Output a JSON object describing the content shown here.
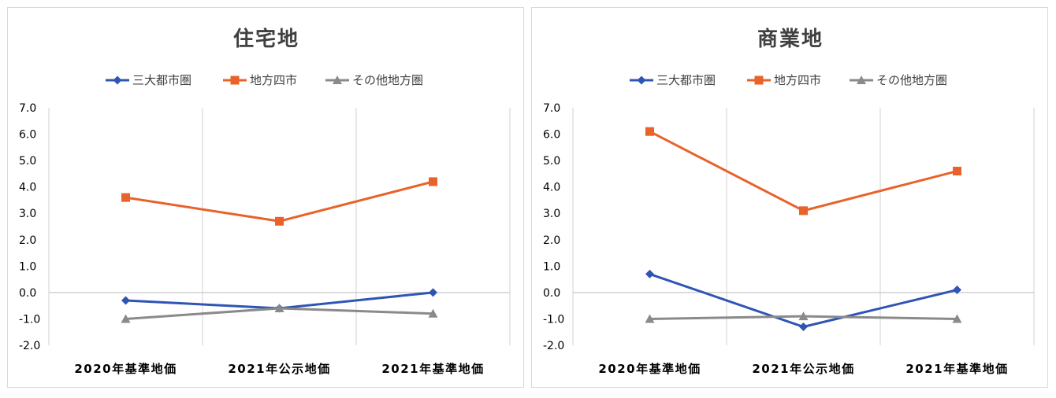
{
  "chart_data": [
    {
      "type": "line",
      "title": "住宅地",
      "categories": [
        "2020年基準地価",
        "2021年公示地価",
        "2021年基準地価"
      ],
      "ylim": [
        -2.0,
        7.0
      ],
      "yticks": [
        "7.0",
        "6.0",
        "5.0",
        "4.0",
        "3.0",
        "2.0",
        "1.0",
        "0.0",
        "-1.0",
        "-2.0"
      ],
      "grid": "vertical category gridlines",
      "legend_position": "top",
      "series": [
        {
          "name": "三大都市圏",
          "values": [
            -0.3,
            -0.6,
            0.0
          ],
          "color": "#2f55b4",
          "marker": "diamond"
        },
        {
          "name": "地方四市",
          "values": [
            3.6,
            2.7,
            4.2
          ],
          "color": "#e8622a",
          "marker": "square"
        },
        {
          "name": "その他地方圏",
          "values": [
            -1.0,
            -0.6,
            -0.8
          ],
          "color": "#8a8a8a",
          "marker": "triangle"
        }
      ]
    },
    {
      "type": "line",
      "title": "商業地",
      "categories": [
        "2020年基準地価",
        "2021年公示地価",
        "2021年基準地価"
      ],
      "ylim": [
        -2.0,
        7.0
      ],
      "yticks": [
        "7.0",
        "6.0",
        "5.0",
        "4.0",
        "3.0",
        "2.0",
        "1.0",
        "0.0",
        "-1.0",
        "-2.0"
      ],
      "grid": "vertical category gridlines",
      "legend_position": "top",
      "series": [
        {
          "name": "三大都市圏",
          "values": [
            0.7,
            -1.3,
            0.1
          ],
          "color": "#2f55b4",
          "marker": "diamond"
        },
        {
          "name": "地方四市",
          "values": [
            6.1,
            3.1,
            4.6
          ],
          "color": "#e8622a",
          "marker": "square"
        },
        {
          "name": "その他地方圏",
          "values": [
            -1.0,
            -0.9,
            -1.0
          ],
          "color": "#8a8a8a",
          "marker": "triangle"
        }
      ]
    }
  ]
}
